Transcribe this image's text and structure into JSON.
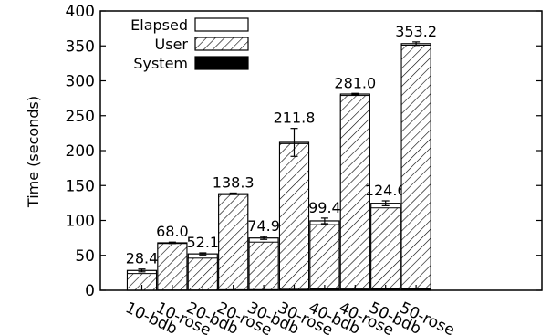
{
  "chart_data": {
    "type": "bar",
    "title": "",
    "xlabel": "",
    "ylabel": "Time (seconds)",
    "ylim": [
      0,
      400
    ],
    "yticks": [
      0,
      50,
      100,
      150,
      200,
      250,
      300,
      350,
      400
    ],
    "categories": [
      "10-bdb",
      "10-rose",
      "20-bdb",
      "20-rose",
      "30-bdb",
      "30-rose",
      "40-bdb",
      "40-rose",
      "50-bdb",
      "50-rose"
    ],
    "series": [
      {
        "name": "Elapsed",
        "values": [
          28.4,
          68.0,
          52.1,
          138.3,
          74.9,
          211.8,
          99.4,
          281.0,
          124.6,
          353.2
        ]
      },
      {
        "name": "User",
        "values": [
          24,
          67,
          46,
          137,
          69,
          210,
          94,
          279,
          118,
          351
        ]
      },
      {
        "name": "System",
        "values": [
          0.6,
          1.0,
          1.0,
          1.5,
          1.6,
          2.2,
          2.6,
          2.5,
          3.2,
          3.2
        ]
      }
    ],
    "error": [
      2.0,
      1.0,
      1.5,
      1.0,
      2.0,
      20.0,
      4.0,
      1.0,
      3.5,
      2.5
    ],
    "value_labels": [
      "28.4",
      "68.0",
      "52.1",
      "138.3",
      "74.9",
      "211.8",
      "99.4",
      "281.0",
      "124.6",
      "353.2"
    ],
    "legend": {
      "position": "top-left",
      "entries": [
        {
          "label": "Elapsed",
          "fill": "empty"
        },
        {
          "label": "User",
          "fill": "hatched"
        },
        {
          "label": "System",
          "fill": "solid"
        }
      ]
    },
    "colors": {
      "elapsed": "#ffffff",
      "system": "#000000",
      "stroke": "#000000"
    }
  }
}
